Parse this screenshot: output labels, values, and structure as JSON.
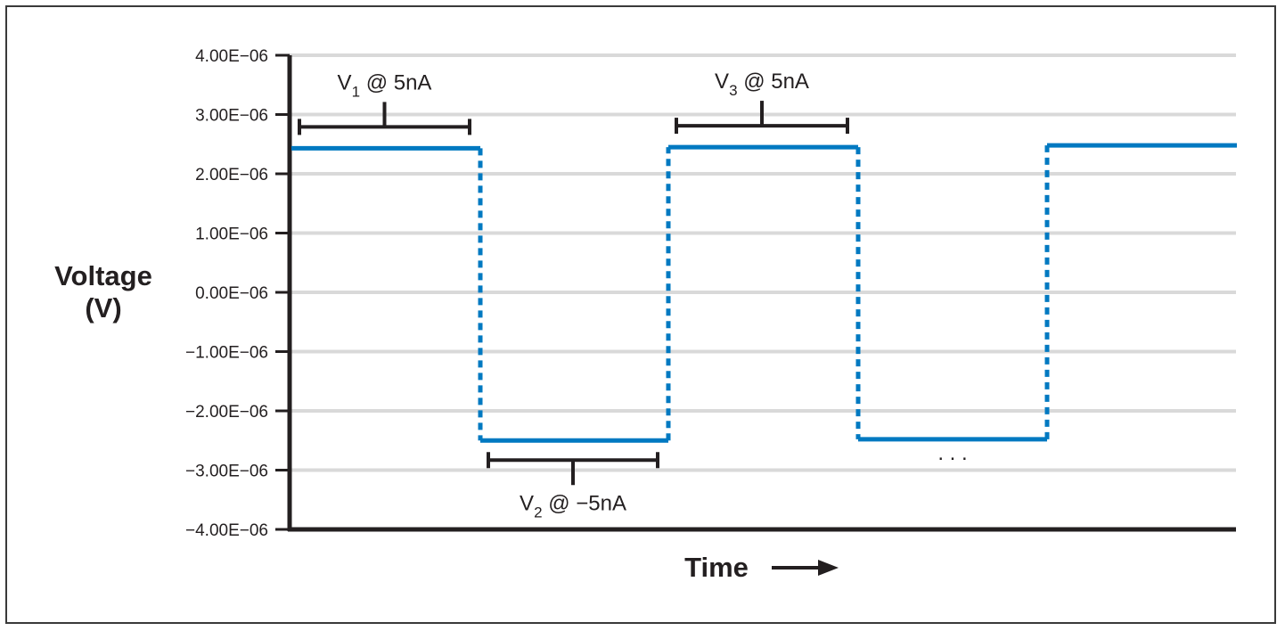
{
  "chart_data": {
    "type": "line",
    "step": true,
    "ylabel_line1": "Voltage",
    "ylabel_line2": "(V)",
    "xlabel": "Time",
    "ylim": [
      -4e-06,
      4e-06
    ],
    "y_ticks": [
      {
        "value": 4e-06,
        "label": "4.00E−06"
      },
      {
        "value": 3e-06,
        "label": "3.00E−06"
      },
      {
        "value": 2e-06,
        "label": "2.00E−06"
      },
      {
        "value": 1e-06,
        "label": "1.00E−06"
      },
      {
        "value": 0,
        "label": "0.00E−06"
      },
      {
        "value": -1e-06,
        "label": "−1.00E−06"
      },
      {
        "value": -2e-06,
        "label": "−2.00E−06"
      },
      {
        "value": -3e-06,
        "label": "−3.00E−06"
      },
      {
        "value": -4e-06,
        "label": "−4.00E−06"
      }
    ],
    "grid": true,
    "series": [
      {
        "segments": [
          {
            "level": 2.43e-06
          },
          {
            "level": -2.5e-06
          },
          {
            "level": 2.45e-06
          },
          {
            "level": -2.48e-06
          },
          {
            "level": 2.48e-06
          }
        ]
      }
    ],
    "annotations": [
      {
        "base": "V",
        "sub": "1",
        "rest": " @ 5nA",
        "segment": 0,
        "position": "above"
      },
      {
        "base": "V",
        "sub": "2",
        "rest": " @ −5nA",
        "segment": 1,
        "position": "below"
      },
      {
        "base": "V",
        "sub": "3",
        "rest": " @ 5nA",
        "segment": 2,
        "position": "above"
      }
    ],
    "ellipsis": ". . .",
    "colors": {
      "line": "#0079c1",
      "grid": "#d9d9d9",
      "axis": "#231f20",
      "text": "#231f20"
    }
  }
}
